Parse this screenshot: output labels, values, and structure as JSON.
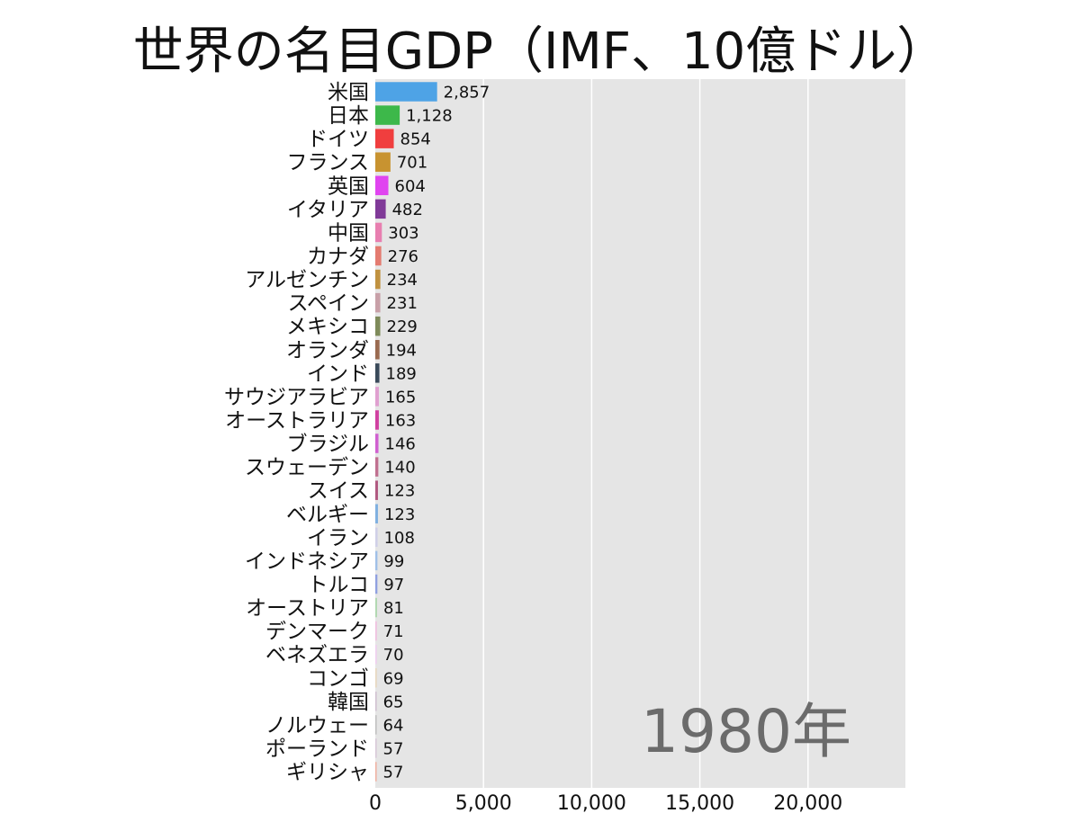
{
  "chart_data": {
    "type": "bar",
    "orientation": "horizontal",
    "title": "世界の名目GDP（IMF、10億ドル）",
    "year_label": "1980年",
    "xlim": [
      0,
      24500
    ],
    "xticks": [
      0,
      5000,
      10000,
      15000,
      20000
    ],
    "xtick_labels": [
      "0",
      "5,000",
      "10,000",
      "15,000",
      "20,000"
    ],
    "grid": true,
    "background_color": "#e5e5e5",
    "categories": [
      "米国",
      "日本",
      "ドイツ",
      "フランス",
      "英国",
      "イタリア",
      "中国",
      "カナダ",
      "アルゼンチン",
      "スペイン",
      "メキシコ",
      "オランダ",
      "インド",
      "サウジアラビア",
      "オーストラリア",
      "ブラジル",
      "スウェーデン",
      "スイス",
      "ベルギー",
      "イラン",
      "インドネシア",
      "トルコ",
      "オーストリア",
      "デンマーク",
      "ベネズエラ",
      "コンゴ",
      "韓国",
      "ノルウェー",
      "ポーランド",
      "ギリシャ"
    ],
    "values": [
      2857,
      1128,
      854,
      701,
      604,
      482,
      303,
      276,
      234,
      231,
      229,
      194,
      189,
      165,
      163,
      146,
      140,
      123,
      123,
      108,
      99,
      97,
      81,
      71,
      70,
      69,
      65,
      64,
      57,
      57
    ],
    "value_labels": [
      "2,857",
      "1,128",
      "854",
      "701",
      "604",
      "482",
      "303",
      "276",
      "234",
      "231",
      "229",
      "194",
      "189",
      "165",
      "163",
      "146",
      "140",
      "123",
      "123",
      "108",
      "99",
      "97",
      "81",
      "71",
      "70",
      "69",
      "65",
      "64",
      "57",
      "57"
    ],
    "colors": [
      "#4ea3e6",
      "#3db84a",
      "#f03e3e",
      "#c89330",
      "#e044f0",
      "#803a98",
      "#e87fb0",
      "#e47b70",
      "#c09240",
      "#c8a0a8",
      "#7e8a5a",
      "#9a6a50",
      "#3a4a5a",
      "#e0a0d0",
      "#d040a0",
      "#d060d0",
      "#c07090",
      "#b05880",
      "#80b0e0",
      "#d0d0e8",
      "#a0c0e8",
      "#90a0e0",
      "#b0d8b0",
      "#f0c0e0",
      "#f0d0f0",
      "#e8d8c0",
      "#d0c0d0",
      "#c0c0c0",
      "#d8c8d8",
      "#f0b0a0"
    ]
  }
}
